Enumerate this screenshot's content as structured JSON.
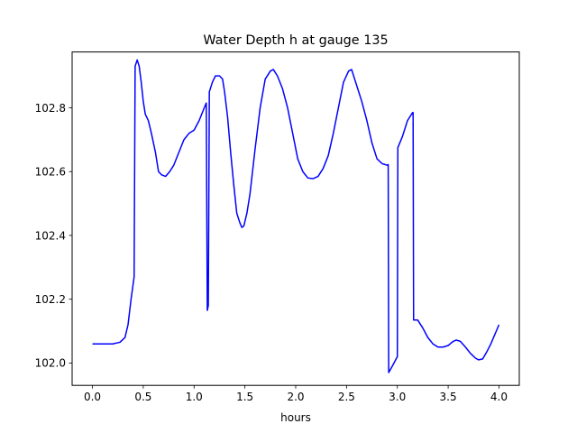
{
  "chart_data": {
    "type": "line",
    "title": "Water Depth h at gauge 135",
    "xlabel": "hours",
    "ylabel": "",
    "xlim": [
      -0.2,
      4.2
    ],
    "ylim": [
      101.93,
      102.975
    ],
    "xticks": [
      0.0,
      0.5,
      1.0,
      1.5,
      2.0,
      2.5,
      3.0,
      3.5,
      4.0
    ],
    "xtick_labels": [
      "0.0",
      "0.5",
      "1.0",
      "1.5",
      "2.0",
      "2.5",
      "3.0",
      "3.5",
      "4.0"
    ],
    "yticks": [
      102.0,
      102.2,
      102.4,
      102.6,
      102.8
    ],
    "ytick_labels": [
      "102.0",
      "102.2",
      "102.4",
      "102.6",
      "102.8"
    ],
    "grid": false,
    "series": [
      {
        "color": "#0000ff",
        "points": [
          [
            0.0,
            102.06
          ],
          [
            0.1,
            102.06
          ],
          [
            0.2,
            102.06
          ],
          [
            0.27,
            102.065
          ],
          [
            0.32,
            102.08
          ],
          [
            0.35,
            102.12
          ],
          [
            0.38,
            102.2
          ],
          [
            0.41,
            102.27
          ],
          [
            0.42,
            102.93
          ],
          [
            0.44,
            102.95
          ],
          [
            0.46,
            102.93
          ],
          [
            0.48,
            102.88
          ],
          [
            0.5,
            102.82
          ],
          [
            0.52,
            102.78
          ],
          [
            0.55,
            102.76
          ],
          [
            0.58,
            102.72
          ],
          [
            0.62,
            102.66
          ],
          [
            0.65,
            102.6
          ],
          [
            0.68,
            102.59
          ],
          [
            0.72,
            102.585
          ],
          [
            0.76,
            102.6
          ],
          [
            0.8,
            102.62
          ],
          [
            0.85,
            102.66
          ],
          [
            0.9,
            102.7
          ],
          [
            0.95,
            102.72
          ],
          [
            1.0,
            102.73
          ],
          [
            1.05,
            102.76
          ],
          [
            1.1,
            102.8
          ],
          [
            1.12,
            102.815
          ],
          [
            1.13,
            102.165
          ],
          [
            1.14,
            102.18
          ],
          [
            1.15,
            102.85
          ],
          [
            1.18,
            102.88
          ],
          [
            1.21,
            102.9
          ],
          [
            1.25,
            102.9
          ],
          [
            1.28,
            102.89
          ],
          [
            1.3,
            102.85
          ],
          [
            1.33,
            102.77
          ],
          [
            1.36,
            102.66
          ],
          [
            1.39,
            102.56
          ],
          [
            1.42,
            102.47
          ],
          [
            1.45,
            102.44
          ],
          [
            1.47,
            102.425
          ],
          [
            1.49,
            102.43
          ],
          [
            1.52,
            102.47
          ],
          [
            1.55,
            102.53
          ],
          [
            1.6,
            102.67
          ],
          [
            1.65,
            102.8
          ],
          [
            1.7,
            102.89
          ],
          [
            1.75,
            102.915
          ],
          [
            1.78,
            102.92
          ],
          [
            1.82,
            102.9
          ],
          [
            1.87,
            102.86
          ],
          [
            1.92,
            102.8
          ],
          [
            1.97,
            102.72
          ],
          [
            2.02,
            102.64
          ],
          [
            2.07,
            102.6
          ],
          [
            2.12,
            102.58
          ],
          [
            2.17,
            102.578
          ],
          [
            2.22,
            102.585
          ],
          [
            2.27,
            102.61
          ],
          [
            2.32,
            102.65
          ],
          [
            2.37,
            102.72
          ],
          [
            2.42,
            102.8
          ],
          [
            2.47,
            102.88
          ],
          [
            2.52,
            102.915
          ],
          [
            2.55,
            102.92
          ],
          [
            2.6,
            102.87
          ],
          [
            2.65,
            102.82
          ],
          [
            2.7,
            102.76
          ],
          [
            2.75,
            102.69
          ],
          [
            2.8,
            102.64
          ],
          [
            2.85,
            102.625
          ],
          [
            2.9,
            102.62
          ],
          [
            2.91,
            102.622
          ],
          [
            2.915,
            101.97
          ],
          [
            2.95,
            101.99
          ],
          [
            3.0,
            102.02
          ],
          [
            3.005,
            102.675
          ],
          [
            3.05,
            102.71
          ],
          [
            3.1,
            102.76
          ],
          [
            3.15,
            102.785
          ],
          [
            3.155,
            102.785
          ],
          [
            3.16,
            102.135
          ],
          [
            3.2,
            102.135
          ],
          [
            3.25,
            102.11
          ],
          [
            3.3,
            102.08
          ],
          [
            3.35,
            102.06
          ],
          [
            3.4,
            102.05
          ],
          [
            3.45,
            102.05
          ],
          [
            3.5,
            102.055
          ],
          [
            3.55,
            102.068
          ],
          [
            3.58,
            102.072
          ],
          [
            3.62,
            102.068
          ],
          [
            3.67,
            102.05
          ],
          [
            3.72,
            102.03
          ],
          [
            3.77,
            102.015
          ],
          [
            3.8,
            102.01
          ],
          [
            3.84,
            102.013
          ],
          [
            3.88,
            102.035
          ],
          [
            3.92,
            102.06
          ],
          [
            3.96,
            102.09
          ],
          [
            4.0,
            102.12
          ]
        ]
      }
    ]
  }
}
